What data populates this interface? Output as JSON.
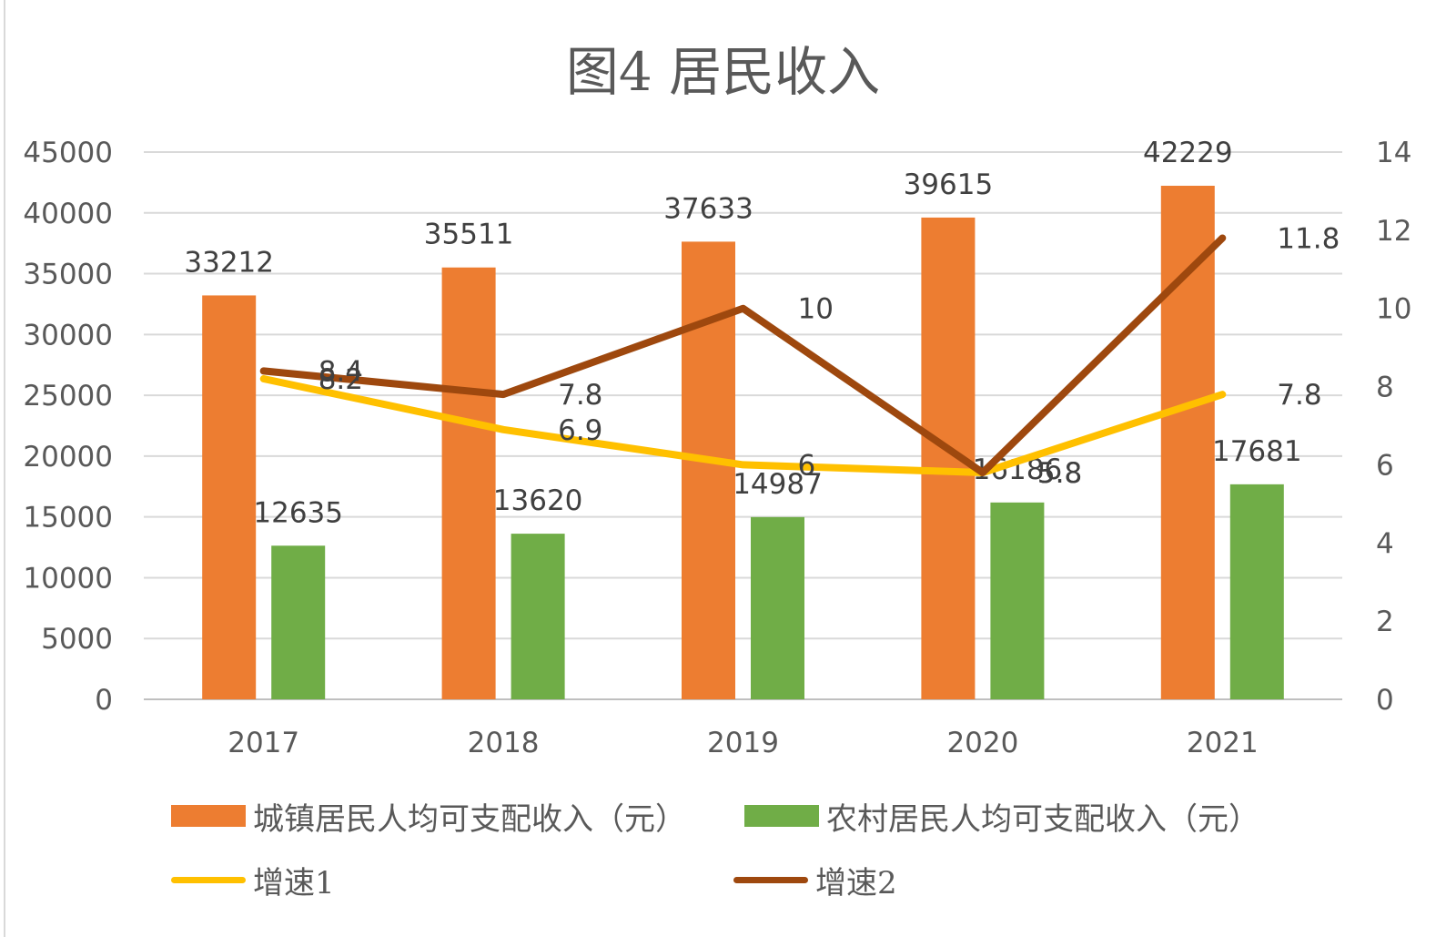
{
  "chart_data": {
    "type": "bar",
    "title": "图4 居民收入",
    "categories": [
      "2017",
      "2018",
      "2019",
      "2020",
      "2021"
    ],
    "left_axis": {
      "min": 0,
      "max": 45000,
      "step": 5000
    },
    "right_axis": {
      "min": 0,
      "max": 14,
      "step": 2
    },
    "grid": true,
    "legend_position": "bottom",
    "bar_series": [
      {
        "name": "城镇居民人均可支配收入（元）",
        "color": "#ED7D31",
        "values": [
          33212,
          35511,
          37633,
          39615,
          42229
        ]
      },
      {
        "name": "农村居民人均可支配收入（元）",
        "color": "#70AD47",
        "values": [
          12635,
          13620,
          14987,
          16186,
          17681
        ]
      }
    ],
    "line_series": [
      {
        "name": "增速1",
        "color": "#FFC000",
        "axis": "right",
        "values": [
          8.2,
          6.9,
          6,
          5.8,
          7.8
        ]
      },
      {
        "name": "增速2",
        "color": "#9E480E",
        "axis": "right",
        "values": [
          8.4,
          7.8,
          10,
          5.8,
          11.8
        ]
      }
    ]
  }
}
